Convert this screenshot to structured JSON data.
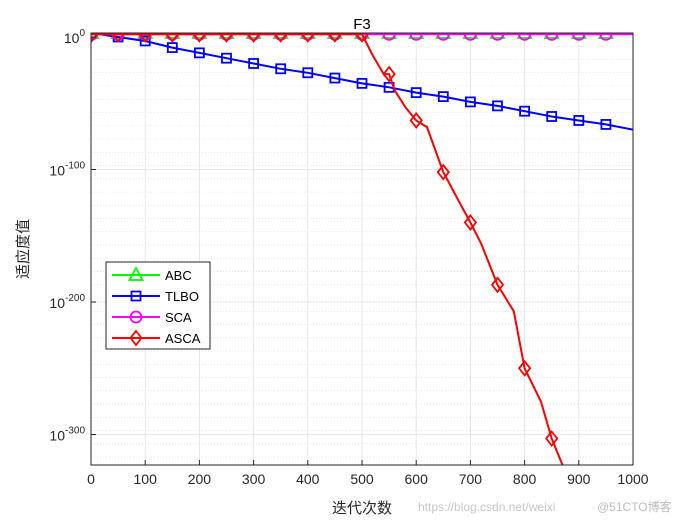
{
  "chart_data": {
    "type": "line",
    "title": "F3",
    "xlabel": "迭代次数",
    "ylabel": "适应度值",
    "xlim": [
      0,
      1000
    ],
    "ylim_log10": [
      -323,
      3
    ],
    "yscale": "log",
    "grid": true,
    "minor_grid": true,
    "legend_position": "center-left",
    "x_ticks": [
      0,
      100,
      200,
      300,
      400,
      500,
      600,
      700,
      800,
      900,
      1000
    ],
    "x_tick_labels": [
      "0",
      "100",
      "200",
      "300",
      "400",
      "500",
      "600",
      "700",
      "800",
      "900",
      "1000"
    ],
    "y_ticks_log10": [
      0,
      -100,
      -200,
      -300
    ],
    "y_tick_labels": [
      {
        "base": "10",
        "exp": "0"
      },
      {
        "base": "10",
        "exp": "-100"
      },
      {
        "base": "10",
        "exp": "-200"
      },
      {
        "base": "10",
        "exp": "-300"
      }
    ],
    "series": [
      {
        "name": "ABC",
        "color": "#00ff00",
        "marker": "triangle",
        "points_log10": [
          [
            1,
            3
          ],
          [
            500,
            3
          ],
          [
            1000,
            3
          ]
        ],
        "marker_x": [
          1,
          50,
          100,
          150,
          200,
          250,
          300,
          350,
          400,
          450,
          500,
          550,
          600,
          650,
          700,
          750,
          800,
          850,
          900,
          950
        ]
      },
      {
        "name": "TLBO",
        "color": "#0000ff",
        "marker": "square",
        "points_log10": [
          [
            1,
            3
          ],
          [
            50,
            0
          ],
          [
            100,
            -3
          ],
          [
            150,
            -8
          ],
          [
            200,
            -12
          ],
          [
            250,
            -16
          ],
          [
            300,
            -20
          ],
          [
            350,
            -24
          ],
          [
            400,
            -27
          ],
          [
            450,
            -31
          ],
          [
            500,
            -35
          ],
          [
            550,
            -38
          ],
          [
            600,
            -42
          ],
          [
            650,
            -45
          ],
          [
            700,
            -49
          ],
          [
            750,
            -52
          ],
          [
            800,
            -56
          ],
          [
            850,
            -60
          ],
          [
            900,
            -63
          ],
          [
            950,
            -66
          ],
          [
            1000,
            -70
          ]
        ],
        "marker_x": [
          1,
          50,
          100,
          150,
          200,
          250,
          300,
          350,
          400,
          450,
          500,
          550,
          600,
          650,
          700,
          750,
          800,
          850,
          900,
          950
        ]
      },
      {
        "name": "SCA",
        "color": "#ff00ff",
        "marker": "circle",
        "points_log10": [
          [
            1,
            2
          ],
          [
            500,
            2
          ],
          [
            1000,
            2
          ]
        ],
        "marker_x": [
          1,
          50,
          100,
          150,
          200,
          250,
          300,
          350,
          400,
          450,
          500,
          550,
          600,
          650,
          700,
          750,
          800,
          850,
          900,
          950
        ]
      },
      {
        "name": "ASCA",
        "color": "#ff0000",
        "marker": "diamond",
        "points_log10": [
          [
            1,
            2
          ],
          [
            500,
            2
          ],
          [
            520,
            -14
          ],
          [
            540,
            -28
          ],
          [
            550,
            -28
          ],
          [
            560,
            -40
          ],
          [
            580,
            -53
          ],
          [
            600,
            -63
          ],
          [
            620,
            -68
          ],
          [
            650,
            -102
          ],
          [
            680,
            -125
          ],
          [
            700,
            -140
          ],
          [
            720,
            -156
          ],
          [
            750,
            -187
          ],
          [
            780,
            -207
          ],
          [
            800,
            -250
          ],
          [
            830,
            -275
          ],
          [
            850,
            -303
          ],
          [
            870,
            -323
          ]
        ],
        "marker_x": [
          1,
          50,
          100,
          150,
          200,
          250,
          300,
          350,
          400,
          450,
          500,
          550,
          600,
          650,
          700,
          750,
          800,
          850
        ],
        "marker_y_log10": [
          2,
          2,
          2,
          2,
          2,
          2,
          2,
          2,
          2,
          2,
          2,
          -28,
          -63,
          -102,
          -140,
          -187,
          -250,
          -303
        ]
      }
    ]
  },
  "watermark": {
    "url": "https://blog.csdn.net/weixi",
    "brand": "@51CTO博客"
  }
}
